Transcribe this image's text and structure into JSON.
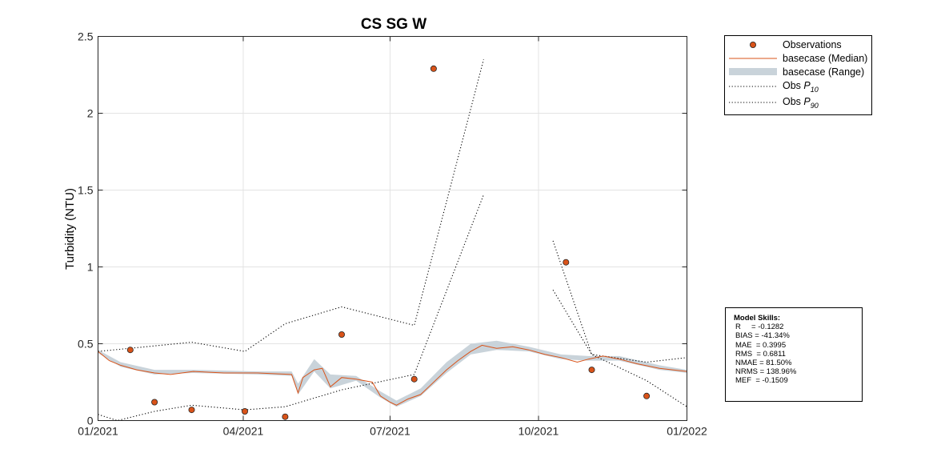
{
  "chart_data": {
    "type": "line",
    "title": "CS SG W",
    "ylabel": "Turbidity (NTU)",
    "xlabel": "",
    "x_range": [
      "2021-01-01",
      "2022-01-01"
    ],
    "ylim": [
      0,
      2.5
    ],
    "x_ticks": [
      "2021-01-01",
      "2021-04-01",
      "2021-07-01",
      "2021-10-01",
      "2022-01-01"
    ],
    "x_tick_labels": [
      "01/2021",
      "04/2021",
      "07/2021",
      "10/2021",
      "01/2022"
    ],
    "y_ticks": [
      0,
      0.5,
      1,
      1.5,
      2,
      2.5
    ],
    "y_tick_labels": [
      "0",
      "0.5",
      "1",
      "1.5",
      "2",
      "2.5"
    ],
    "grid": true,
    "legend_position": "outside-top-right",
    "colors": {
      "observations": "#d95319",
      "median": "#d95319",
      "range": "#c9d3da",
      "percentile": "#000000"
    },
    "series": [
      {
        "name": "Observations",
        "style": "markers",
        "points": [
          [
            "2021-01-21",
            0.46
          ],
          [
            "2021-02-05",
            0.12
          ],
          [
            "2021-02-28",
            0.07
          ],
          [
            "2021-04-02",
            0.06
          ],
          [
            "2021-04-27",
            0.025
          ],
          [
            "2021-06-01",
            0.56
          ],
          [
            "2021-07-16",
            0.27
          ],
          [
            "2021-07-28",
            2.29
          ],
          [
            "2021-10-18",
            1.03
          ],
          [
            "2021-11-03",
            0.33
          ],
          [
            "2021-12-07",
            0.16
          ]
        ]
      },
      {
        "name": "basecase (Median)",
        "style": "line",
        "points": [
          [
            "2021-01-01",
            0.45
          ],
          [
            "2021-01-08",
            0.39
          ],
          [
            "2021-01-15",
            0.36
          ],
          [
            "2021-01-25",
            0.33
          ],
          [
            "2021-02-05",
            0.31
          ],
          [
            "2021-02-15",
            0.3
          ],
          [
            "2021-03-01",
            0.32
          ],
          [
            "2021-03-20",
            0.31
          ],
          [
            "2021-04-10",
            0.31
          ],
          [
            "2021-05-01",
            0.3
          ],
          [
            "2021-05-05",
            0.18
          ],
          [
            "2021-05-08",
            0.28
          ],
          [
            "2021-05-15",
            0.33
          ],
          [
            "2021-05-20",
            0.34
          ],
          [
            "2021-05-25",
            0.22
          ],
          [
            "2021-06-01",
            0.28
          ],
          [
            "2021-06-10",
            0.27
          ],
          [
            "2021-06-20",
            0.25
          ],
          [
            "2021-06-25",
            0.16
          ],
          [
            "2021-07-01",
            0.12
          ],
          [
            "2021-07-05",
            0.1
          ],
          [
            "2021-07-12",
            0.14
          ],
          [
            "2021-07-20",
            0.17
          ],
          [
            "2021-07-25",
            0.22
          ],
          [
            "2021-08-05",
            0.33
          ],
          [
            "2021-08-12",
            0.39
          ],
          [
            "2021-08-20",
            0.45
          ],
          [
            "2021-08-27",
            0.49
          ],
          [
            "2021-09-05",
            0.47
          ],
          [
            "2021-09-15",
            0.48
          ],
          [
            "2021-09-25",
            0.46
          ],
          [
            "2021-10-05",
            0.43
          ],
          [
            "2021-10-15",
            0.41
          ],
          [
            "2021-10-25",
            0.38
          ],
          [
            "2021-11-01",
            0.4
          ],
          [
            "2021-11-10",
            0.42
          ],
          [
            "2021-11-20",
            0.4
          ],
          [
            "2021-12-01",
            0.37
          ],
          [
            "2021-12-15",
            0.34
          ],
          [
            "2022-01-01",
            0.32
          ]
        ]
      },
      {
        "name": "basecase (Range)",
        "style": "band",
        "lower": [
          [
            "2021-01-01",
            0.44
          ],
          [
            "2021-01-15",
            0.35
          ],
          [
            "2021-02-05",
            0.3
          ],
          [
            "2021-03-01",
            0.31
          ],
          [
            "2021-04-10",
            0.3
          ],
          [
            "2021-05-01",
            0.29
          ],
          [
            "2021-05-05",
            0.17
          ],
          [
            "2021-05-15",
            0.32
          ],
          [
            "2021-05-25",
            0.21
          ],
          [
            "2021-06-10",
            0.26
          ],
          [
            "2021-06-25",
            0.15
          ],
          [
            "2021-07-05",
            0.09
          ],
          [
            "2021-07-20",
            0.16
          ],
          [
            "2021-08-05",
            0.31
          ],
          [
            "2021-08-20",
            0.43
          ],
          [
            "2021-09-05",
            0.46
          ],
          [
            "2021-09-25",
            0.45
          ],
          [
            "2021-10-15",
            0.4
          ],
          [
            "2021-11-01",
            0.39
          ],
          [
            "2021-11-20",
            0.39
          ],
          [
            "2021-12-15",
            0.33
          ],
          [
            "2022-01-01",
            0.31
          ]
        ],
        "upper": [
          [
            "2021-01-01",
            0.46
          ],
          [
            "2021-01-15",
            0.38
          ],
          [
            "2021-02-05",
            0.33
          ],
          [
            "2021-03-01",
            0.33
          ],
          [
            "2021-04-10",
            0.32
          ],
          [
            "2021-05-01",
            0.32
          ],
          [
            "2021-05-05",
            0.24
          ],
          [
            "2021-05-15",
            0.4
          ],
          [
            "2021-05-25",
            0.3
          ],
          [
            "2021-06-10",
            0.29
          ],
          [
            "2021-06-25",
            0.19
          ],
          [
            "2021-07-05",
            0.13
          ],
          [
            "2021-07-20",
            0.21
          ],
          [
            "2021-08-05",
            0.38
          ],
          [
            "2021-08-20",
            0.5
          ],
          [
            "2021-09-05",
            0.52
          ],
          [
            "2021-09-25",
            0.48
          ],
          [
            "2021-10-15",
            0.43
          ],
          [
            "2021-11-01",
            0.42
          ],
          [
            "2021-11-20",
            0.42
          ],
          [
            "2021-12-15",
            0.36
          ],
          [
            "2022-01-01",
            0.33
          ]
        ]
      },
      {
        "name": "Obs P10",
        "label_main": "Obs ",
        "label_sub": "10",
        "style": "dotted",
        "segments": [
          [
            [
              "2021-01-01",
              0.04
            ],
            [
              "2021-01-13",
              0.0
            ],
            [
              "2021-02-05",
              0.06
            ],
            [
              "2021-02-28",
              0.1
            ],
            [
              "2021-04-02",
              0.07
            ],
            [
              "2021-04-27",
              0.09
            ],
            [
              "2021-06-01",
              0.2
            ],
            [
              "2021-07-16",
              0.3
            ],
            [
              "2021-08-28",
              1.47
            ]
          ],
          [
            [
              "2021-10-10",
              0.85
            ],
            [
              "2021-11-03",
              0.43
            ],
            [
              "2021-12-07",
              0.26
            ],
            [
              "2022-01-01",
              0.09
            ]
          ]
        ]
      },
      {
        "name": "Obs P90",
        "label_main": "Obs ",
        "label_sub": "90",
        "style": "dotted",
        "segments": [
          [
            [
              "2021-01-01",
              0.45
            ],
            [
              "2021-02-28",
              0.51
            ],
            [
              "2021-04-02",
              0.45
            ],
            [
              "2021-04-27",
              0.63
            ],
            [
              "2021-06-01",
              0.74
            ],
            [
              "2021-07-16",
              0.62
            ],
            [
              "2021-08-28",
              2.35
            ]
          ],
          [
            [
              "2021-10-10",
              1.17
            ],
            [
              "2021-11-03",
              0.43
            ],
            [
              "2021-12-07",
              0.38
            ],
            [
              "2022-01-01",
              0.41
            ]
          ]
        ]
      }
    ],
    "model_skills": {
      "title": "Model Skills:",
      "lines": [
        "R     = -0.1282",
        "BIAS = -41.34%",
        "MAE  = 0.3995",
        "RMS  = 0.6811",
        "NMAE = 81.50%",
        "NRMS = 138.96%",
        "MEF  = -0.1509"
      ]
    }
  }
}
